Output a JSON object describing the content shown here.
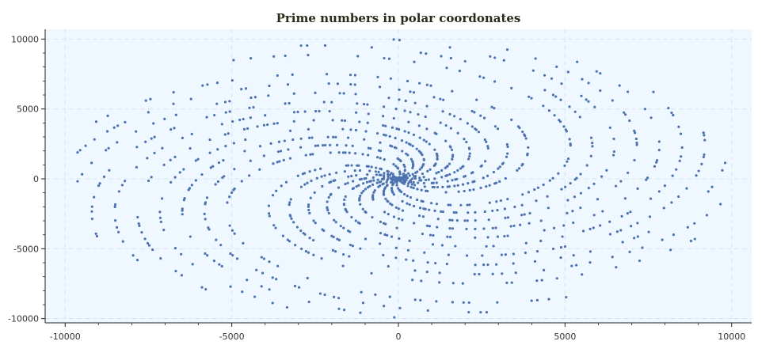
{
  "chart_data": {
    "type": "scatter",
    "title": "Prime numbers in polar coordonates",
    "xlabel": "",
    "ylabel": "",
    "xlim": [
      -10600,
      10600
    ],
    "ylim": [
      -10300,
      10700
    ],
    "x_ticks": [
      -10000,
      -5000,
      0,
      5000,
      10000
    ],
    "y_ticks": [
      -10000,
      -5000,
      0,
      5000,
      10000
    ],
    "grid": true,
    "point_color": "#4c72b0",
    "background_color": "#f0f8ff",
    "generator": "primes p <= 10000 plotted at (p*cos(p), p*sin(p)) with p in radians",
    "series": [
      {
        "max_prime": 10000
      }
    ]
  }
}
